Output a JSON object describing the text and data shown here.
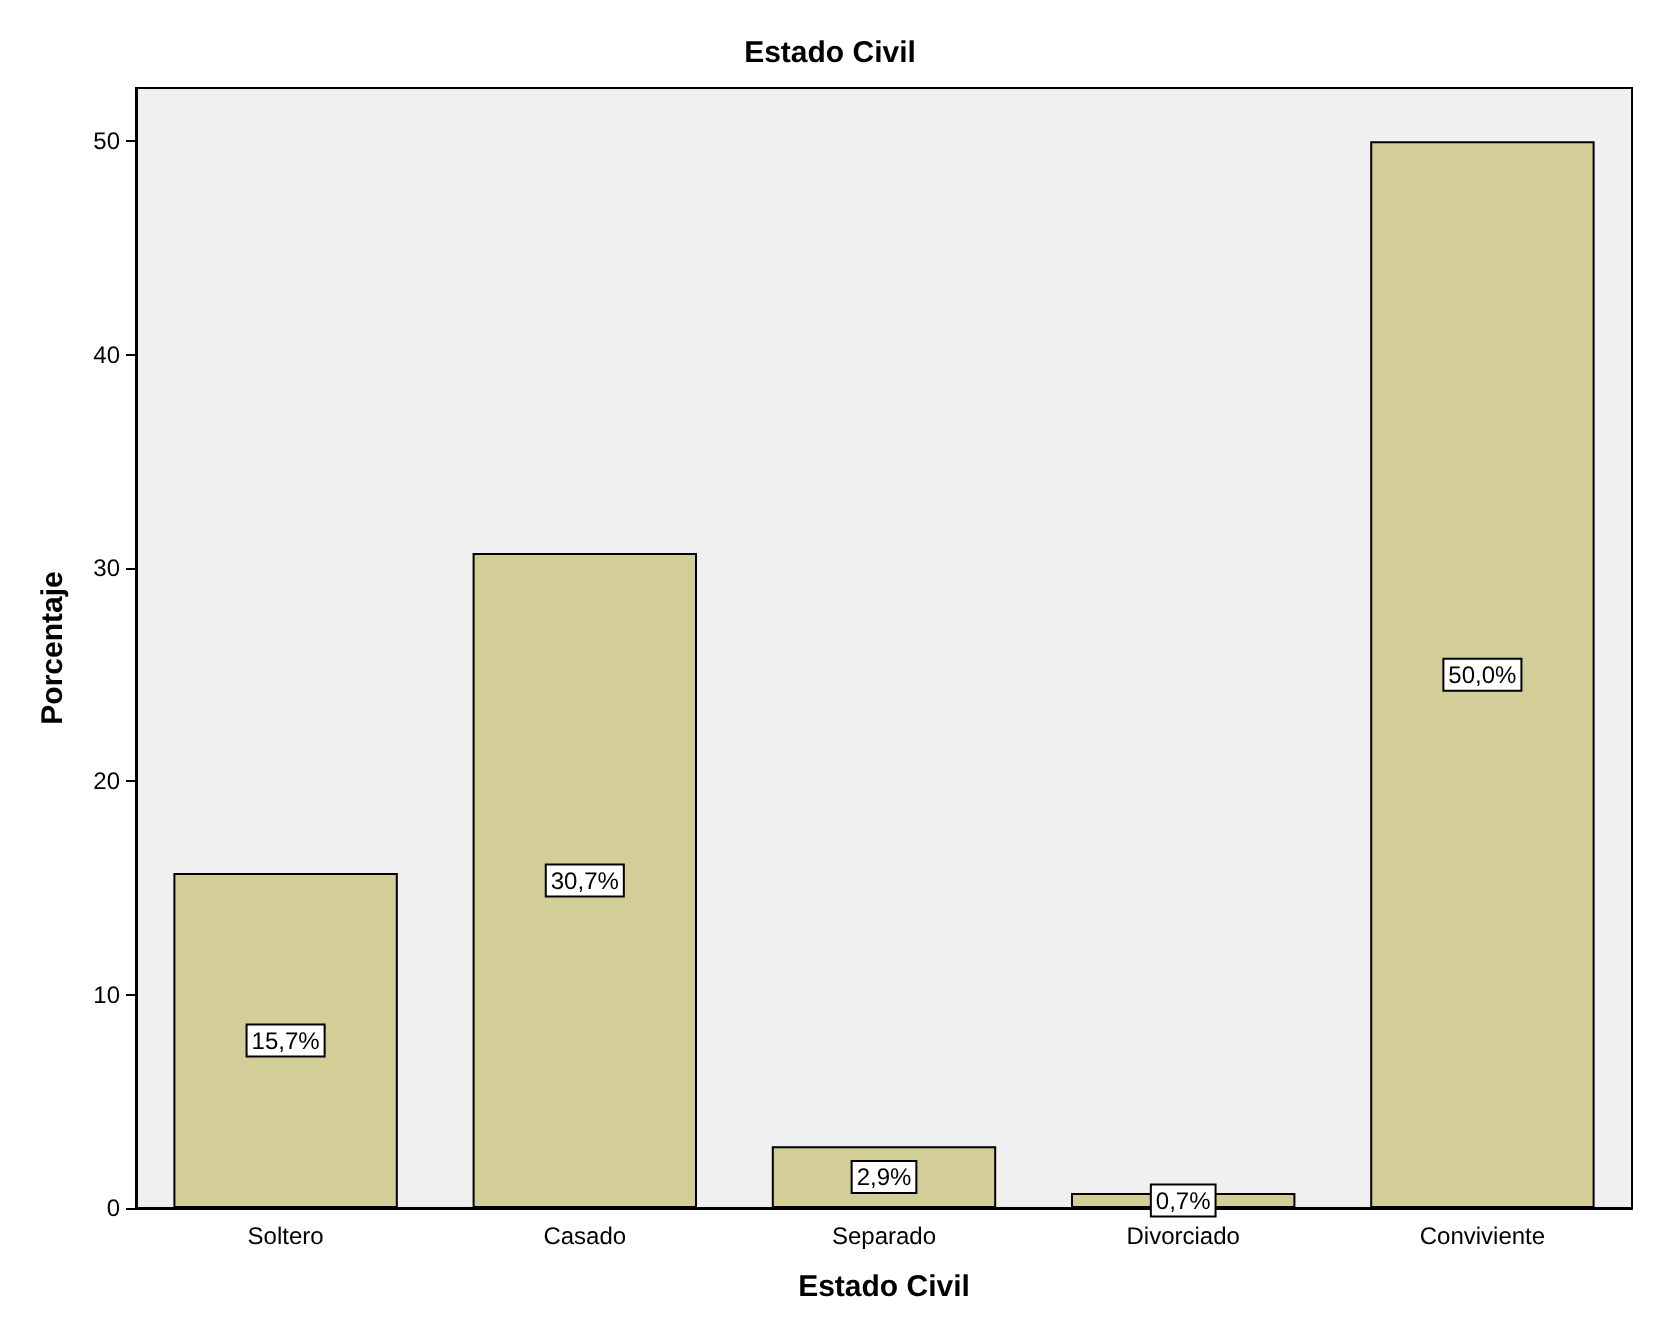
{
  "chart_data": {
    "type": "bar",
    "title": "Estado Civil",
    "xlabel": "Estado Civil",
    "ylabel": "Porcentaje",
    "categories": [
      "Soltero",
      "Casado",
      "Separado",
      "Divorciado",
      "Conviviente"
    ],
    "values": [
      15.7,
      30.7,
      2.9,
      0.7,
      50.0
    ],
    "value_labels": [
      "15,7%",
      "30,7%",
      "2,9%",
      "0,7%",
      "50,0%"
    ],
    "color": "#d3ce97",
    "ylim": [
      0,
      52.5
    ],
    "yticks": [
      0,
      10,
      20,
      30,
      40,
      50
    ]
  }
}
